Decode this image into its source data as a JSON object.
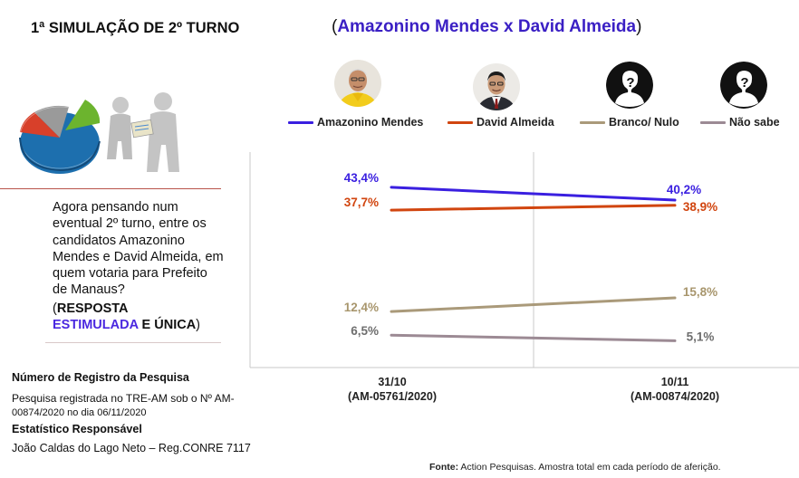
{
  "header": {
    "title": "1ª SIMULAÇÃO DE 2º TURNO",
    "matchup_open": "(",
    "matchup_names": "Amazonino Mendes x David Almeida",
    "matchup_close": ")"
  },
  "question": {
    "text": "Agora pensando num eventual 2º turno, entre os candidatos Amazonino Mendes e David Almeida, em quem votaria para Prefeito de Manaus?",
    "note_open": "(",
    "note_bold1": "RESPOSTA",
    "note_em": "ESTIMULADA",
    "note_mid": " E ",
    "note_bold2": "ÚNICA",
    "note_close": ")"
  },
  "registration": {
    "heading": "Número de Registro da Pesquisa",
    "line1": "Pesquisa registrada no TRE-AM sob o Nº AM-",
    "line2": "00874/2020 no dia 06/11/2020",
    "statistician_heading": "Estatístico Responsável",
    "statistician": "João Caldas do Lago Neto – Reg.CONRE 7117"
  },
  "footer": {
    "source_label": "Fonte:",
    "source_text": " Action Pesquisas. Amostra total em cada período de aferição."
  },
  "chart_data": {
    "type": "line",
    "x": [
      "31/10\n(AM-05761/2020)",
      "10/11\n(AM-00874/2020)"
    ],
    "x_line1": [
      "31/10",
      "10/11"
    ],
    "x_line2": [
      "(AM-05761/2020)",
      "(AM-00874/2020)"
    ],
    "ylim": [
      0,
      50
    ],
    "grid": false,
    "legend_position": "top",
    "series": [
      {
        "name": "Amazonino Mendes",
        "values": [
          43.4,
          40.2
        ],
        "labels": [
          "43,4%",
          "40,2%"
        ],
        "color": "#3a1fe0",
        "label_color": "#3a1fe0"
      },
      {
        "name": "David Almeida",
        "values": [
          37.7,
          38.9
        ],
        "labels": [
          "37,7%",
          "38,9%"
        ],
        "color": "#d1450f",
        "label_color": "#d1450f"
      },
      {
        "name": "Branco/ Nulo",
        "values": [
          12.4,
          15.8
        ],
        "labels": [
          "12,4%",
          "15,8%"
        ],
        "color": "#aa9a7a",
        "label_color": "#a8966d"
      },
      {
        "name": "Não sabe",
        "values": [
          6.5,
          5.1
        ],
        "labels": [
          "6,5%",
          "5,1%"
        ],
        "color": "#9c8a94",
        "label_color": "#6e6e6e"
      }
    ]
  },
  "colors": {
    "accent": "#3a1fc4",
    "rule": "#b8534a"
  },
  "icons": [
    "pie-chart-illustration",
    "handshake-illustration",
    "candidate-photo-amazonino",
    "candidate-photo-david",
    "anonymous-head-icon"
  ]
}
